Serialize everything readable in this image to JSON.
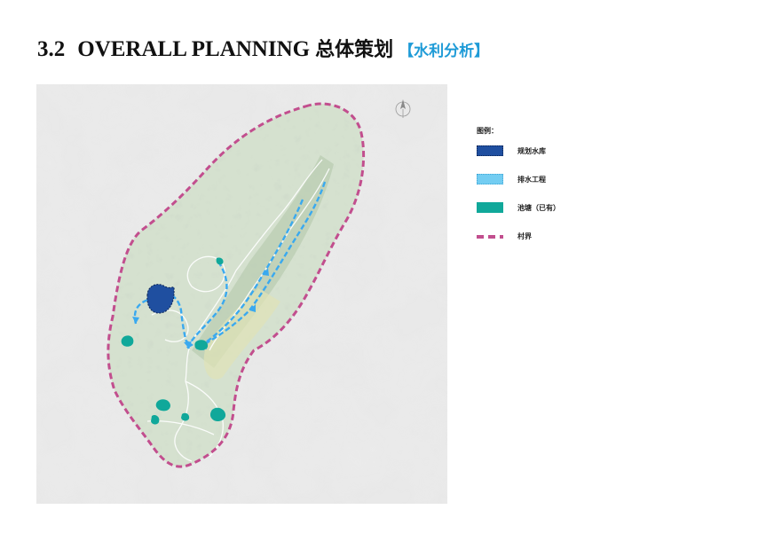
{
  "header": {
    "section_number": "3.2",
    "title_en": "OVERALL PLANNING",
    "title_cn": "总体策划",
    "subtitle": "【水利分析】"
  },
  "map": {
    "north_icon": "north-arrow-icon"
  },
  "legend": {
    "title": "图例：",
    "items": [
      {
        "label": "规划水库",
        "icon": "reservoir-swatch-icon",
        "color": "#1f4fa0"
      },
      {
        "label": "排水工程",
        "icon": "drainage-swatch-icon",
        "color": "#73cdf2"
      },
      {
        "label": "池塘（已有）",
        "icon": "pond-swatch-icon",
        "color": "#10a89a"
      },
      {
        "label": "村界",
        "icon": "village-boundary-swatch-icon",
        "color": "#c24e8e"
      }
    ]
  },
  "colors": {
    "accent": "#1e9bd7",
    "boundary": "#c24e8e",
    "reservoir": "#1f4fa0",
    "drainage": "#3aa9ef",
    "pond": "#10a89a"
  }
}
